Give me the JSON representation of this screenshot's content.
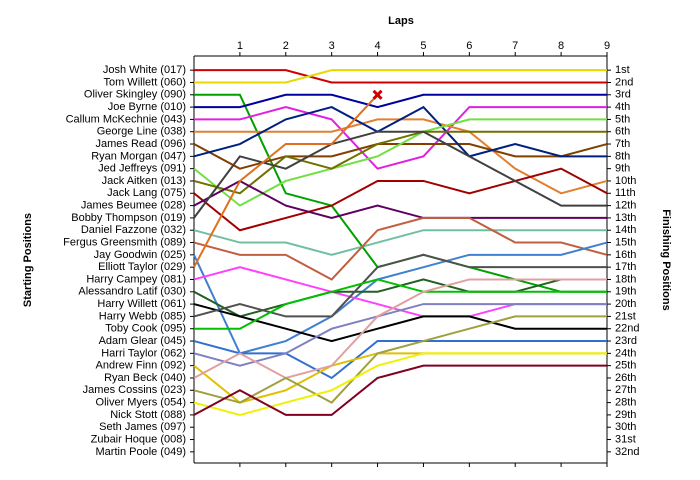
{
  "chart_data": {
    "type": "line",
    "title": "Laps",
    "ylabel": "Starting Positions",
    "y2label": "Finishing Positions",
    "x": [
      0,
      1,
      2,
      3,
      4,
      5,
      6,
      7,
      8,
      9
    ],
    "xlim": [
      0,
      9
    ],
    "xticks": [
      1,
      2,
      3,
      4,
      5,
      6,
      7,
      8,
      9
    ],
    "ylim": [
      0.5,
      32.5
    ],
    "inverted": true,
    "y2ticks": [
      {
        "value": 1,
        "label": "1st"
      },
      {
        "value": 2,
        "label": "2nd"
      },
      {
        "value": 3,
        "label": "3rd"
      },
      {
        "value": 4,
        "label": "4th"
      },
      {
        "value": 5,
        "label": "5th"
      },
      {
        "value": 6,
        "label": "6th"
      },
      {
        "value": 7,
        "label": "7th"
      },
      {
        "value": 8,
        "label": "8th"
      },
      {
        "value": 9,
        "label": "9th"
      },
      {
        "value": 10,
        "label": "10th"
      },
      {
        "value": 11,
        "label": "11th"
      },
      {
        "value": 12,
        "label": "12th"
      },
      {
        "value": 13,
        "label": "13th"
      },
      {
        "value": 14,
        "label": "14th"
      },
      {
        "value": 15,
        "label": "15th"
      },
      {
        "value": 16,
        "label": "16th"
      },
      {
        "value": 17,
        "label": "17th"
      },
      {
        "value": 18,
        "label": "18th"
      },
      {
        "value": 19,
        "label": "19th"
      },
      {
        "value": 20,
        "label": "20th"
      },
      {
        "value": 21,
        "label": "21st"
      },
      {
        "value": 22,
        "label": "22nd"
      },
      {
        "value": 23,
        "label": "23rd"
      },
      {
        "value": 24,
        "label": "24th"
      },
      {
        "value": 25,
        "label": "25th"
      },
      {
        "value": 26,
        "label": "26th"
      },
      {
        "value": 27,
        "label": "27th"
      },
      {
        "value": 28,
        "label": "28th"
      },
      {
        "value": 29,
        "label": "29th"
      },
      {
        "value": 30,
        "label": "30th"
      },
      {
        "value": 31,
        "label": "31st"
      },
      {
        "value": 32,
        "label": "32nd"
      }
    ],
    "series": [
      {
        "name": "Josh White (017)",
        "color": "#cc0000",
        "values": [
          1,
          1,
          1,
          2,
          2,
          2,
          2,
          2,
          2,
          2
        ]
      },
      {
        "name": "Tom Willett (060)",
        "color": "#e8d800",
        "values": [
          2,
          2,
          2,
          1,
          1,
          1,
          1,
          1,
          1,
          1
        ]
      },
      {
        "name": "Oliver Skingley (090)",
        "color": "#00a000",
        "values": [
          3,
          3,
          11,
          12,
          17,
          16,
          17,
          18,
          19,
          19
        ]
      },
      {
        "name": "Joe Byrne (010)",
        "color": "#0000a0",
        "values": [
          4,
          4,
          3,
          3,
          4,
          3,
          3,
          3,
          3,
          3
        ]
      },
      {
        "name": "Callum McKechnie (043)",
        "color": "#e020e0",
        "values": [
          5,
          5,
          4,
          5,
          9,
          8,
          4,
          4,
          4,
          4
        ]
      },
      {
        "name": "George Line (038)",
        "color": "#e08030",
        "values": [
          6,
          6,
          6,
          6,
          5,
          5,
          6,
          9,
          11,
          10
        ]
      },
      {
        "name": "James Read (096)",
        "color": "#804000",
        "values": [
          7,
          9,
          8,
          8,
          7,
          7,
          7,
          8,
          8,
          7
        ]
      },
      {
        "name": "Ryan Morgan (047)",
        "color": "#002080",
        "values": [
          8,
          7,
          5,
          4,
          6,
          4,
          8,
          7,
          8,
          8
        ]
      },
      {
        "name": "Jed Jeffreys (091)",
        "color": "#70e040",
        "values": [
          9,
          12,
          10,
          9,
          8,
          6,
          5,
          5,
          5,
          5
        ]
      },
      {
        "name": "Jack Aitken (013)",
        "color": "#707000",
        "values": [
          10,
          11,
          8,
          9,
          7,
          6,
          6,
          6,
          6,
          6
        ]
      },
      {
        "name": "Jack Lang (075)",
        "color": "#a00000",
        "values": [
          11,
          14,
          13,
          12,
          10,
          10,
          11,
          10,
          9,
          11
        ]
      },
      {
        "name": "James Beumee (028)",
        "color": "#600060",
        "values": [
          12,
          10,
          12,
          13,
          12,
          13,
          13,
          13,
          13,
          13
        ]
      },
      {
        "name": "Bobby Thompson (019)",
        "color": "#404040",
        "values": [
          13,
          8,
          9,
          7,
          6,
          6,
          8,
          10,
          12,
          12
        ]
      },
      {
        "name": "Daniel Fazzone (032)",
        "color": "#70c0a0",
        "values": [
          14,
          15,
          15,
          16,
          15,
          14,
          14,
          14,
          14,
          14
        ]
      },
      {
        "name": "Fergus Greensmith (089)",
        "color": "#c06040",
        "values": [
          15,
          16,
          16,
          18,
          14,
          13,
          13,
          15,
          15,
          16
        ]
      },
      {
        "name": "Jay Goodwin (025)",
        "color": "#4080d0",
        "values": [
          16,
          24,
          23,
          21,
          18,
          17,
          16,
          16,
          16,
          15
        ]
      },
      {
        "name": "Elliott Taylor (029)",
        "color": "#e07020",
        "retired": true,
        "values": [
          17,
          10,
          7,
          7,
          3,
          null,
          null,
          null,
          null,
          null
        ]
      },
      {
        "name": "Harry Campey (081)",
        "color": "#ff40ff",
        "values": [
          18,
          17,
          18,
          19,
          20,
          21,
          21,
          20,
          20,
          20
        ]
      },
      {
        "name": "Alessandro Latif (030)",
        "color": "#206020",
        "values": [
          19,
          21,
          20,
          19,
          19,
          18,
          19,
          19,
          18,
          18
        ]
      },
      {
        "name": "Harry Willett (061)",
        "color": "#000000",
        "values": [
          20,
          21,
          22,
          23,
          22,
          21,
          21,
          22,
          22,
          22
        ]
      },
      {
        "name": "Harry Webb (085)",
        "color": "#505050",
        "values": [
          21,
          20,
          21,
          21,
          17,
          16,
          17,
          17,
          17,
          17
        ]
      },
      {
        "name": "Toby Cook (095)",
        "color": "#00c000",
        "values": [
          22,
          22,
          20,
          19,
          18,
          19,
          19,
          19,
          19,
          19
        ]
      },
      {
        "name": "Adam Glear (045)",
        "color": "#3070d0",
        "values": [
          23,
          24,
          24,
          26,
          23,
          23,
          23,
          23,
          23,
          23
        ]
      },
      {
        "name": "Harri Taylor (062)",
        "color": "#8080c0",
        "values": [
          24,
          25,
          24,
          22,
          21,
          20,
          20,
          20,
          20,
          20
        ]
      },
      {
        "name": "Andrew Finn (092)",
        "color": "#e0c000",
        "values": [
          25,
          28,
          27,
          25,
          24,
          24,
          24,
          24,
          24,
          24
        ]
      },
      {
        "name": "Ryan Beck (040)",
        "color": "#e0a0a0",
        "values": [
          26,
          24,
          26,
          25,
          21,
          19,
          18,
          18,
          18,
          18
        ]
      },
      {
        "name": "James Cossins (023)",
        "color": "#a0a040",
        "values": [
          27,
          28,
          26,
          28,
          24,
          23,
          22,
          21,
          21,
          21
        ]
      },
      {
        "name": "Oliver Myers (054)",
        "color": "#f0f000",
        "values": [
          28,
          29,
          28,
          27,
          25,
          24,
          24,
          24,
          24,
          24
        ]
      },
      {
        "name": "Nick Stott (088)",
        "color": "#800020",
        "values": [
          29,
          27,
          29,
          29,
          26,
          25,
          25,
          25,
          25,
          25
        ]
      },
      {
        "name": "Seth James (097)",
        "color": "#808080",
        "values": [
          30,
          null,
          null,
          null,
          null,
          null,
          null,
          null,
          null,
          null
        ]
      },
      {
        "name": "Zubair Hoque (008)",
        "color": "#808080",
        "values": [
          31,
          null,
          null,
          null,
          null,
          null,
          null,
          null,
          null,
          null
        ]
      },
      {
        "name": "Martin Poole (049)",
        "color": "#808080",
        "values": [
          32,
          null,
          null,
          null,
          null,
          null,
          null,
          null,
          null,
          null
        ]
      }
    ]
  }
}
